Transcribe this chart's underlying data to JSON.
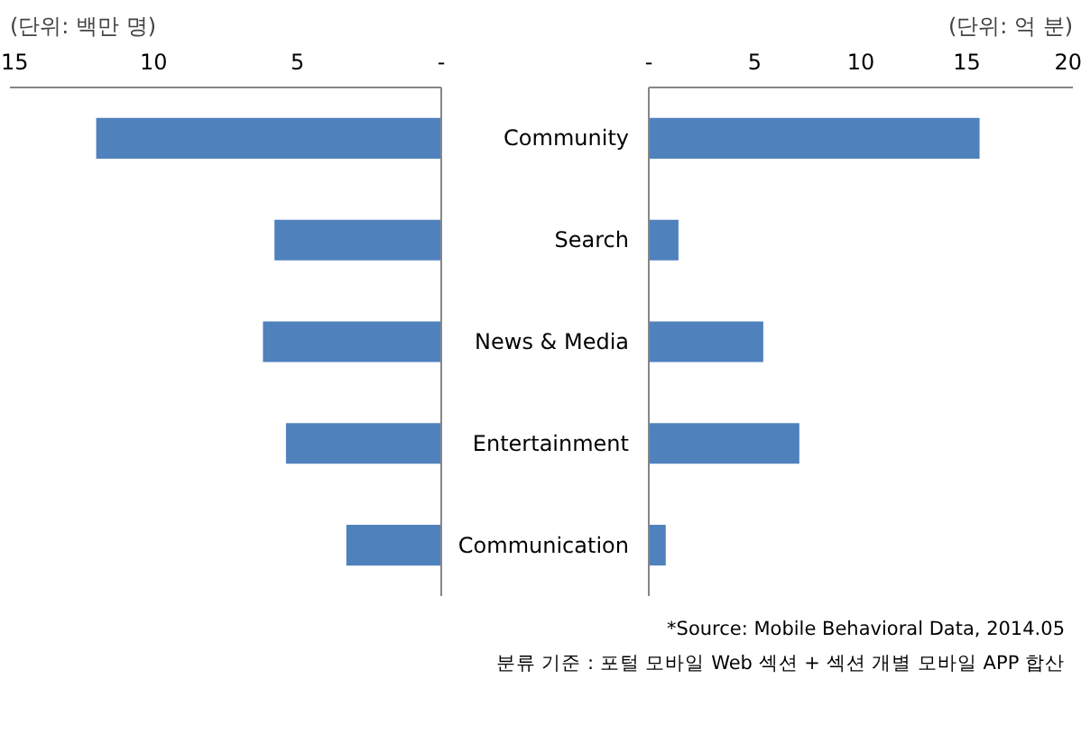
{
  "chart_data": [
    {
      "type": "bar",
      "orientation": "horizontal",
      "title": "(단위: 백만 명)",
      "categories": [
        null,
        null,
        null,
        null,
        null
      ],
      "values": [
        12.0,
        5.8,
        6.2,
        5.4,
        3.3
      ],
      "color": "#4f81bd",
      "xlim": [
        15,
        0
      ],
      "xticks": [
        15,
        10,
        5,
        {
          "value": 0,
          "label": "-"
        }
      ],
      "tick_labels": "x"
    },
    {
      "type": "bar",
      "orientation": "horizontal",
      "title": "(단위: 억 분)",
      "categories": [
        "Community",
        "Search",
        "News & Media",
        "Entertainment",
        "Communication"
      ],
      "values": [
        15.6,
        1.4,
        5.4,
        7.1,
        0.8
      ],
      "color": "#4f81bd",
      "xlim": [
        0,
        20
      ],
      "xticks": [
        {
          "value": 0,
          "label": "-"
        },
        5,
        10,
        15,
        20
      ],
      "annotations": [
        "*Source: Mobile Behavioral Data, 2014.05",
        "분류 기준 : 포털 모바일 Web 섹션 + 섹션 개별 모바일 APP 합산"
      ]
    }
  ]
}
